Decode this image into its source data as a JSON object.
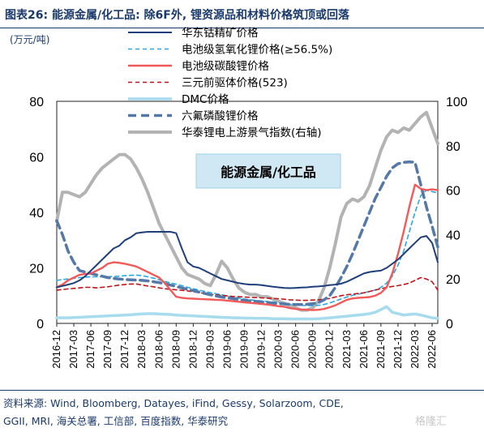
{
  "header": {
    "title": "图表26: 能源金属/化工品: 除6F外, 锂资源品和材料价格筑顶或回落"
  },
  "unit_label": "(万元/吨)",
  "source": {
    "line1": "资料来源: Wind, Bloomberg, Datayes, iFind, Gessy, Solarzoom, CDE,",
    "line2": "GGII, MRI, 海关总署, 工信部, 百度指数, 华泰研究"
  },
  "watermark": "格隆汇",
  "chart_data": {
    "type": "line",
    "annotation": "能源金属/化工品",
    "x": [
      "2016-12",
      "2017-01",
      "2017-02",
      "2017-03",
      "2017-04",
      "2017-05",
      "2017-06",
      "2017-07",
      "2017-08",
      "2017-09",
      "2017-10",
      "2017-11",
      "2017-12",
      "2018-01",
      "2018-02",
      "2018-03",
      "2018-04",
      "2018-05",
      "2018-06",
      "2018-07",
      "2018-08",
      "2018-09",
      "2018-10",
      "2018-11",
      "2018-12",
      "2019-01",
      "2019-02",
      "2019-03",
      "2019-04",
      "2019-05",
      "2019-06",
      "2019-07",
      "2019-08",
      "2019-09",
      "2019-10",
      "2019-11",
      "2019-12",
      "2020-01",
      "2020-02",
      "2020-03",
      "2020-04",
      "2020-05",
      "2020-06",
      "2020-07",
      "2020-08",
      "2020-09",
      "2020-10",
      "2020-11",
      "2020-12",
      "2021-01",
      "2021-02",
      "2021-03",
      "2021-04",
      "2021-05",
      "2021-06",
      "2021-07",
      "2021-08",
      "2021-09",
      "2021-10",
      "2021-11",
      "2021-12",
      "2022-01",
      "2022-02",
      "2022-03",
      "2022-04",
      "2022-05",
      "2022-06",
      "2022-07"
    ],
    "x_ticks": [
      "2016-12",
      "2017-03",
      "2017-06",
      "2017-09",
      "2017-12",
      "2018-03",
      "2018-06",
      "2018-09",
      "2018-12",
      "2019-03",
      "2019-06",
      "2019-09",
      "2019-12",
      "2020-03",
      "2020-06",
      "2020-09",
      "2020-12",
      "2021-03",
      "2021-06",
      "2021-09",
      "2021-12",
      "2022-03",
      "2022-06"
    ],
    "y_left": {
      "ylim": [
        0,
        80
      ],
      "ticks": [
        0,
        20,
        40,
        60,
        80
      ]
    },
    "y_right": {
      "ylim": [
        0,
        100
      ],
      "ticks": [
        0,
        20,
        40,
        60,
        80,
        100
      ]
    },
    "legend_position": "top-right",
    "series": [
      {
        "name": "华东钴精矿价格",
        "axis": "left",
        "color": "#1f3f7a",
        "style": "solid",
        "width": 2,
        "values": [
          13,
          13.5,
          14,
          14.5,
          15.5,
          17,
          19,
          21,
          23,
          25,
          27,
          28,
          30,
          31,
          32.5,
          32.8,
          33,
          33,
          33,
          33,
          33,
          32.5,
          27,
          22,
          20.5,
          20,
          19,
          18,
          17,
          16,
          15.5,
          15,
          14.5,
          14.2,
          14,
          14,
          13.8,
          13.5,
          13.2,
          13,
          12.8,
          12.7,
          12.8,
          12.9,
          13,
          13.2,
          13.3,
          13.5,
          13.8,
          14,
          14.3,
          15,
          16,
          17,
          18,
          18.5,
          18.8,
          19,
          20,
          21.5,
          23,
          25,
          27,
          29,
          31,
          31.5,
          29,
          22
        ]
      },
      {
        "name": "电池级氢氧化锂价格(≥56.5%)",
        "axis": "left",
        "color": "#2aa9e0",
        "style": "dashed",
        "width": 1.6,
        "values": [
          15.5,
          15.8,
          16,
          16.2,
          16.5,
          16.7,
          16.8,
          16.8,
          16.8,
          16.8,
          16.9,
          17,
          17.2,
          17.3,
          17.4,
          17.2,
          16.8,
          16.3,
          15.7,
          15.1,
          14.6,
          14.1,
          13.6,
          13,
          12.5,
          12,
          11.5,
          11.1,
          10.7,
          10.3,
          9.9,
          9.5,
          9.1,
          8.8,
          8.5,
          8.3,
          8.1,
          7.9,
          7.7,
          7.5,
          7.2,
          6.9,
          6.7,
          6.5,
          6.4,
          6.4,
          6.5,
          6.8,
          7.4,
          8.1,
          8.8,
          9.5,
          10.1,
          10.5,
          11,
          11.5,
          12,
          13,
          14.5,
          17,
          21,
          26,
          33,
          40,
          46,
          48,
          47.5,
          47
        ]
      },
      {
        "name": "电池级碳酸锂价格",
        "axis": "left",
        "color": "#f25a5a",
        "style": "solid",
        "width": 2.4,
        "values": [
          13,
          14,
          15.5,
          16.5,
          17.5,
          17.8,
          18,
          19,
          20,
          21.5,
          22,
          21.8,
          21.5,
          21,
          20.5,
          19.5,
          18.5,
          17.5,
          16.5,
          14.5,
          12,
          9.6,
          9.2,
          9,
          8.9,
          8.8,
          8.7,
          8.6,
          8.5,
          8.4,
          8.2,
          8,
          7.8,
          7.6,
          7.4,
          7.2,
          7,
          6.8,
          6.5,
          6.2,
          6,
          5.5,
          5.2,
          5,
          4.9,
          4.8,
          4.9,
          5.2,
          5.8,
          6.5,
          7.5,
          8.5,
          9,
          9.2,
          9.3,
          9.5,
          10,
          11,
          13,
          18,
          25,
          33,
          42,
          50,
          48.5,
          48,
          48.3,
          48
        ]
      },
      {
        "name": "三元前驱体价格(523)",
        "axis": "left",
        "color": "#c0141a",
        "style": "dashed",
        "width": 1.6,
        "values": [
          12,
          12.2,
          12.4,
          12.6,
          12.8,
          13,
          13,
          12.8,
          13,
          13.2,
          13.5,
          13.8,
          14,
          14.2,
          14.2,
          13.8,
          13.5,
          13.2,
          12.8,
          12.5,
          12.3,
          12.1,
          11.9,
          11.7,
          11.4,
          11.1,
          10.8,
          10.5,
          10.3,
          10.1,
          9.9,
          9.7,
          9.6,
          9.5,
          9.4,
          9.3,
          9.2,
          9.1,
          9,
          8.9,
          8.7,
          8.5,
          8.4,
          8.3,
          8.3,
          8.4,
          8.5,
          8.7,
          9,
          9.5,
          10,
          10.3,
          10.5,
          10.8,
          11,
          11.5,
          12,
          12.5,
          13,
          13.3,
          13.6,
          14,
          14.5,
          15.5,
          16.5,
          16,
          15,
          12
        ]
      },
      {
        "name": "DMC价格",
        "axis": "left",
        "color": "#a6dced",
        "style": "solid",
        "width": 3.5,
        "values": [
          2,
          2,
          2,
          2.1,
          2.2,
          2.3,
          2.4,
          2.5,
          2.6,
          2.7,
          2.8,
          2.9,
          3,
          3.1,
          3.3,
          3.4,
          3.5,
          3.5,
          3.4,
          3.3,
          3.2,
          3,
          2.9,
          2.8,
          2.7,
          2.6,
          2.5,
          2.4,
          2.3,
          2.2,
          2.1,
          2,
          2,
          1.9,
          1.9,
          1.8,
          1.8,
          1.8,
          1.7,
          1.7,
          1.7,
          1.6,
          1.6,
          1.6,
          1.6,
          1.6,
          1.7,
          1.8,
          2,
          2.2,
          2.4,
          2.6,
          2.8,
          3,
          3.2,
          3.5,
          4,
          5,
          6,
          4,
          3.5,
          3,
          3.2,
          3.4,
          3,
          2.5,
          2,
          1.8
        ]
      },
      {
        "name": "六氟磷酸锂价格",
        "axis": "left",
        "color": "#5478a8",
        "style": "dashed",
        "width": 3.5,
        "values": [
          37,
          32,
          26,
          22,
          19,
          18.5,
          18,
          17.5,
          17,
          16.5,
          16.2,
          16,
          15.8,
          15.7,
          15.6,
          15.5,
          15.3,
          15,
          14.7,
          14.3,
          13.8,
          13.3,
          12.8,
          12.3,
          11.8,
          11.3,
          10.8,
          10.3,
          9.9,
          9.5,
          9.2,
          8.9,
          8.6,
          8.3,
          8.1,
          7.9,
          7.7,
          7.5,
          7.3,
          7.1,
          7,
          6.9,
          6.8,
          6.8,
          6.9,
          7.1,
          7.5,
          8.5,
          10,
          13,
          16.5,
          20.5,
          25,
          30,
          35,
          40,
          45,
          49,
          53,
          56,
          57.5,
          58,
          58.2,
          58,
          50,
          42,
          35,
          27.5
        ]
      },
      {
        "name": "华泰锂电上游景气指数(右轴)",
        "axis": "right",
        "color": "#b3b3b3",
        "style": "solid",
        "width": 4,
        "values": [
          46,
          59,
          59,
          58,
          57,
          59,
          63,
          67,
          70,
          72,
          74,
          76,
          76,
          74,
          70,
          65,
          59,
          52,
          45,
          40,
          35,
          30,
          25,
          22,
          21,
          20,
          18,
          17,
          22,
          28,
          25,
          20,
          16,
          14,
          13,
          13,
          12,
          12,
          11,
          10,
          9,
          8,
          7,
          6,
          6,
          7,
          10,
          16,
          25,
          36,
          48,
          54,
          56,
          55,
          57,
          62,
          70,
          78,
          84,
          87,
          86,
          88,
          87,
          90,
          93,
          95,
          88,
          81
        ]
      }
    ]
  }
}
